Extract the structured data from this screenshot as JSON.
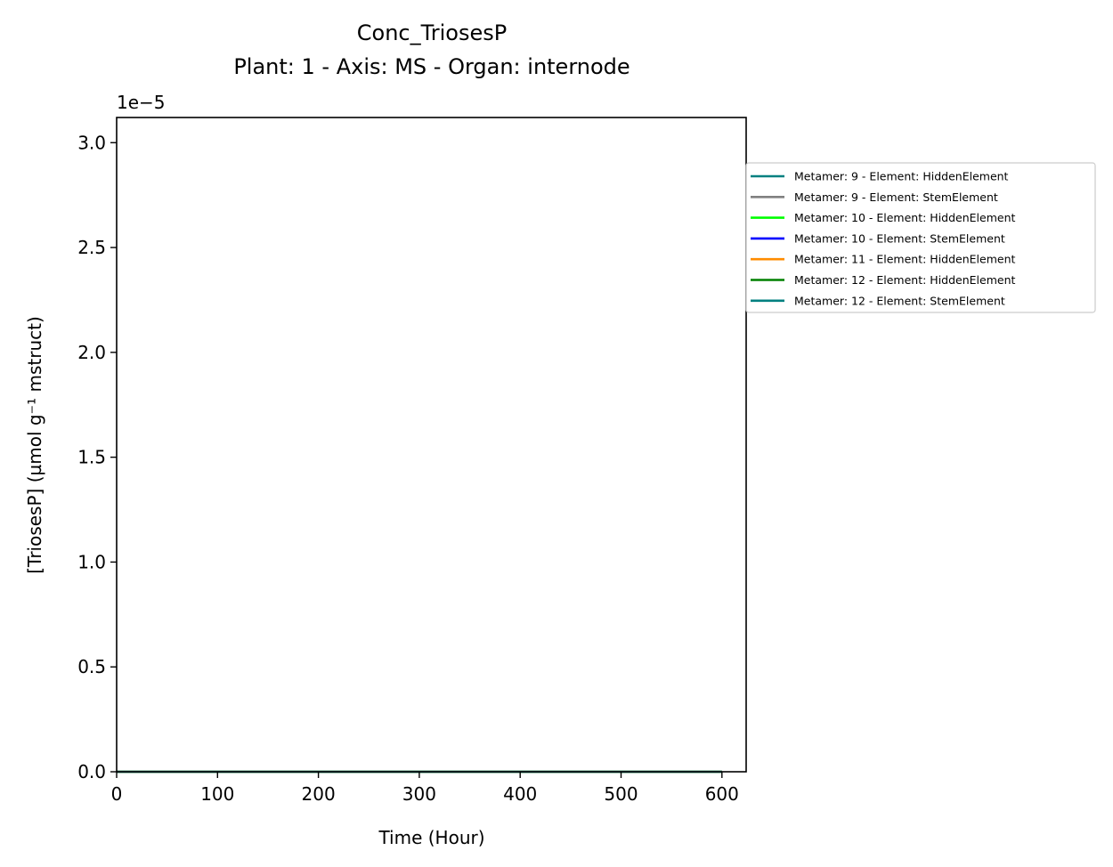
{
  "chart_data": {
    "type": "line",
    "title": "Conc_TriosesP",
    "subtitle": "Plant: 1 - Axis: MS - Organ: internode",
    "xlabel": "Time (Hour)",
    "ylabel": "[TriosesP] (µmol g⁻¹ mstruct)",
    "y_offset_label": "1e−5",
    "y_scale_factor": 1e-05,
    "xlim": [
      0,
      624
    ],
    "ylim": [
      0,
      3.12
    ],
    "x_ticks": [
      0,
      100,
      200,
      300,
      400,
      500,
      600
    ],
    "x_tick_labels": [
      "0",
      "100",
      "200",
      "300",
      "400",
      "500",
      "600"
    ],
    "y_ticks": [
      0,
      0.5,
      1.0,
      1.5,
      2.0,
      2.5,
      3.0
    ],
    "y_tick_labels": [
      "0.0",
      "0.5",
      "1.0",
      "1.5",
      "2.0",
      "2.5",
      "3.0"
    ],
    "grid": false,
    "legend_position": "right, outside plot area",
    "x": [
      0,
      600
    ],
    "series": [
      {
        "name": "Metamer: 9 - Element: HiddenElement",
        "color": "#008080",
        "values": [
          0,
          0
        ]
      },
      {
        "name": "Metamer: 9 - Element: StemElement",
        "color": "#808080",
        "values": [
          0,
          0
        ]
      },
      {
        "name": "Metamer: 10 - Element: HiddenElement",
        "color": "#00ff00",
        "values": [
          0,
          0
        ]
      },
      {
        "name": "Metamer: 10 - Element: StemElement",
        "color": "#0000ff",
        "values": [
          0,
          0
        ]
      },
      {
        "name": "Metamer: 11 - Element: HiddenElement",
        "color": "#ff8c00",
        "values": [
          0,
          0
        ]
      },
      {
        "name": "Metamer: 12 - Element: HiddenElement",
        "color": "#008000",
        "values": [
          0,
          0
        ]
      },
      {
        "name": "Metamer: 12 - Element: StemElement",
        "color": "#008080",
        "values": [
          0,
          0
        ]
      }
    ]
  }
}
